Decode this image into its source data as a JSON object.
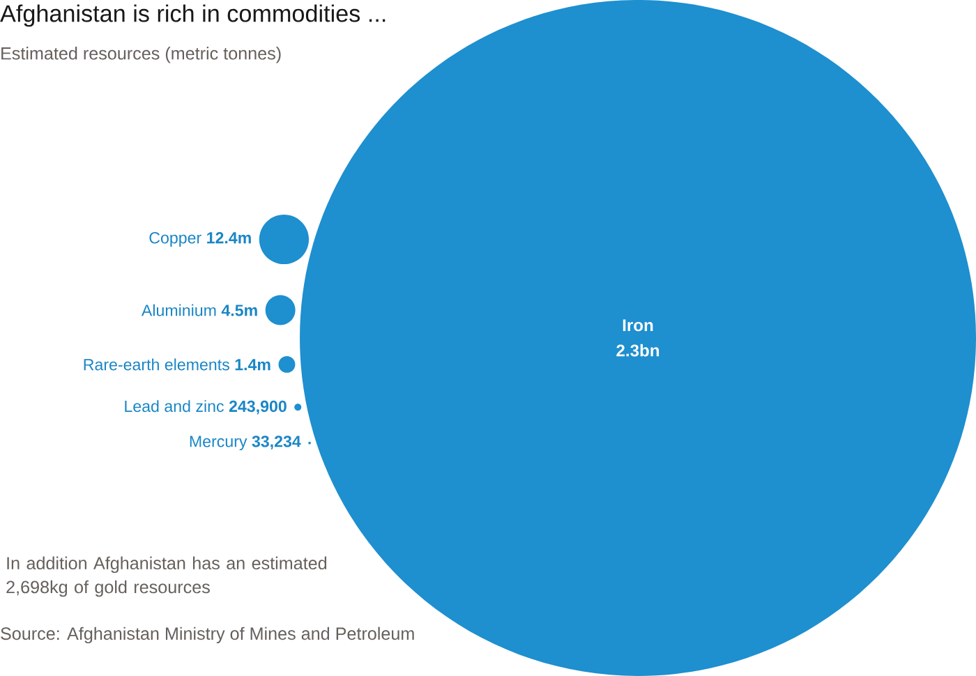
{
  "chart_data": {
    "type": "other",
    "title": "Afghanistan is rich in commodities ...",
    "subtitle": "Estimated resources (metric tonnes)",
    "categories": [
      "Iron",
      "Copper",
      "Aluminium",
      "Rare-earth elements",
      "Lead and zinc",
      "Mercury"
    ],
    "values": [
      2300000000,
      12400000,
      4500000,
      1400000,
      243900,
      33234
    ],
    "value_labels": [
      "2.3bn",
      "12.4m",
      "4.5m",
      "1.4m",
      "243,900",
      "33,234"
    ],
    "color": "#1e8fcf",
    "annotations": [
      "In addition Afghanistan has an estimated 2,698kg of gold resources",
      "Source: Afghanistan Ministry of Mines and Petroleum"
    ]
  }
}
